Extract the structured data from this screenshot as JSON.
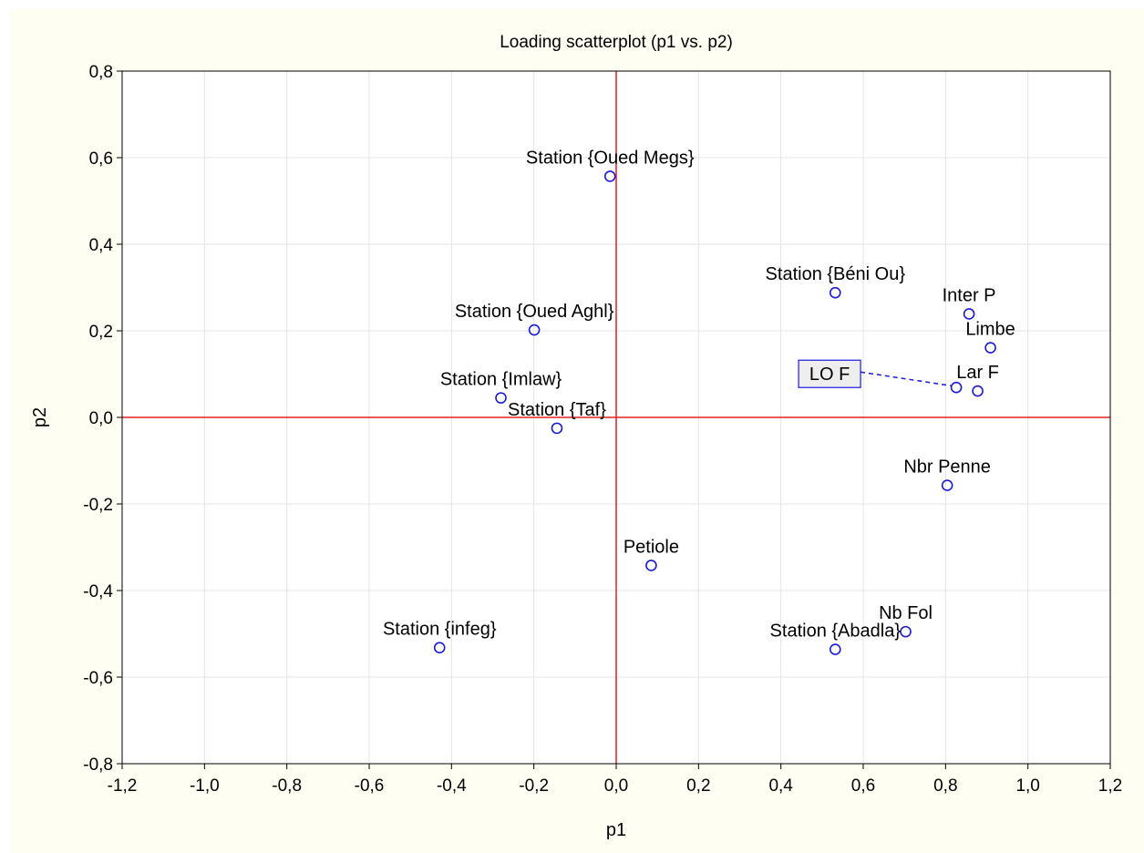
{
  "chart_data": {
    "type": "scatter",
    "title": "Loading scatterplot (p1 vs. p2)",
    "xlabel": "p1",
    "ylabel": "p2",
    "xlim": [
      -1.2,
      1.2
    ],
    "ylim": [
      -0.8,
      0.8
    ],
    "xticks": [
      -1.2,
      -1.0,
      -0.8,
      -0.6,
      -0.4,
      -0.2,
      0.0,
      0.2,
      0.4,
      0.6,
      0.8,
      1.0,
      1.2
    ],
    "yticks": [
      -0.8,
      -0.6,
      -0.4,
      -0.2,
      0.0,
      0.2,
      0.4,
      0.6,
      0.8
    ],
    "xtick_labels": [
      "-1,2",
      "-1,0",
      "-0,8",
      "-0,6",
      "-0,4",
      "-0,2",
      "0,0",
      "0,2",
      "0,4",
      "0,6",
      "0,8",
      "1,0",
      "1,2"
    ],
    "ytick_labels": [
      "-0,8",
      "-0,6",
      "-0,4",
      "-0,2",
      "0,0",
      "0,2",
      "0,4",
      "0,6",
      "0,8"
    ],
    "grid": true,
    "reference_lines": {
      "x": 0,
      "y": 0,
      "color": "#e02020"
    },
    "marker_color": "#1a1adc",
    "points": [
      {
        "label": "Station {Oued Megs}",
        "x": -0.015,
        "y": 0.557
      },
      {
        "label": "Station {Béni Ou}",
        "x": 0.532,
        "y": 0.288
      },
      {
        "label": "Inter P",
        "x": 0.857,
        "y": 0.239
      },
      {
        "label": "Limbe",
        "x": 0.909,
        "y": 0.161
      },
      {
        "label": "Station {Oued Aghl}",
        "x": -0.199,
        "y": 0.202
      },
      {
        "label": "LO F",
        "x": 0.826,
        "y": 0.069,
        "boxed": true
      },
      {
        "label": "Lar F",
        "x": 0.878,
        "y": 0.061
      },
      {
        "label": "Station {Imlaw}",
        "x": -0.28,
        "y": 0.045
      },
      {
        "label": "Station {Taf}",
        "x": -0.144,
        "y": -0.025
      },
      {
        "label": "Nbr Penne",
        "x": 0.804,
        "y": -0.157
      },
      {
        "label": "Petiole",
        "x": 0.085,
        "y": -0.342
      },
      {
        "label": "Nb Fol",
        "x": 0.703,
        "y": -0.495
      },
      {
        "label": "Station {Abadla}",
        "x": 0.532,
        "y": -0.536
      },
      {
        "label": "Station {infeg}",
        "x": -0.429,
        "y": -0.532
      }
    ]
  }
}
